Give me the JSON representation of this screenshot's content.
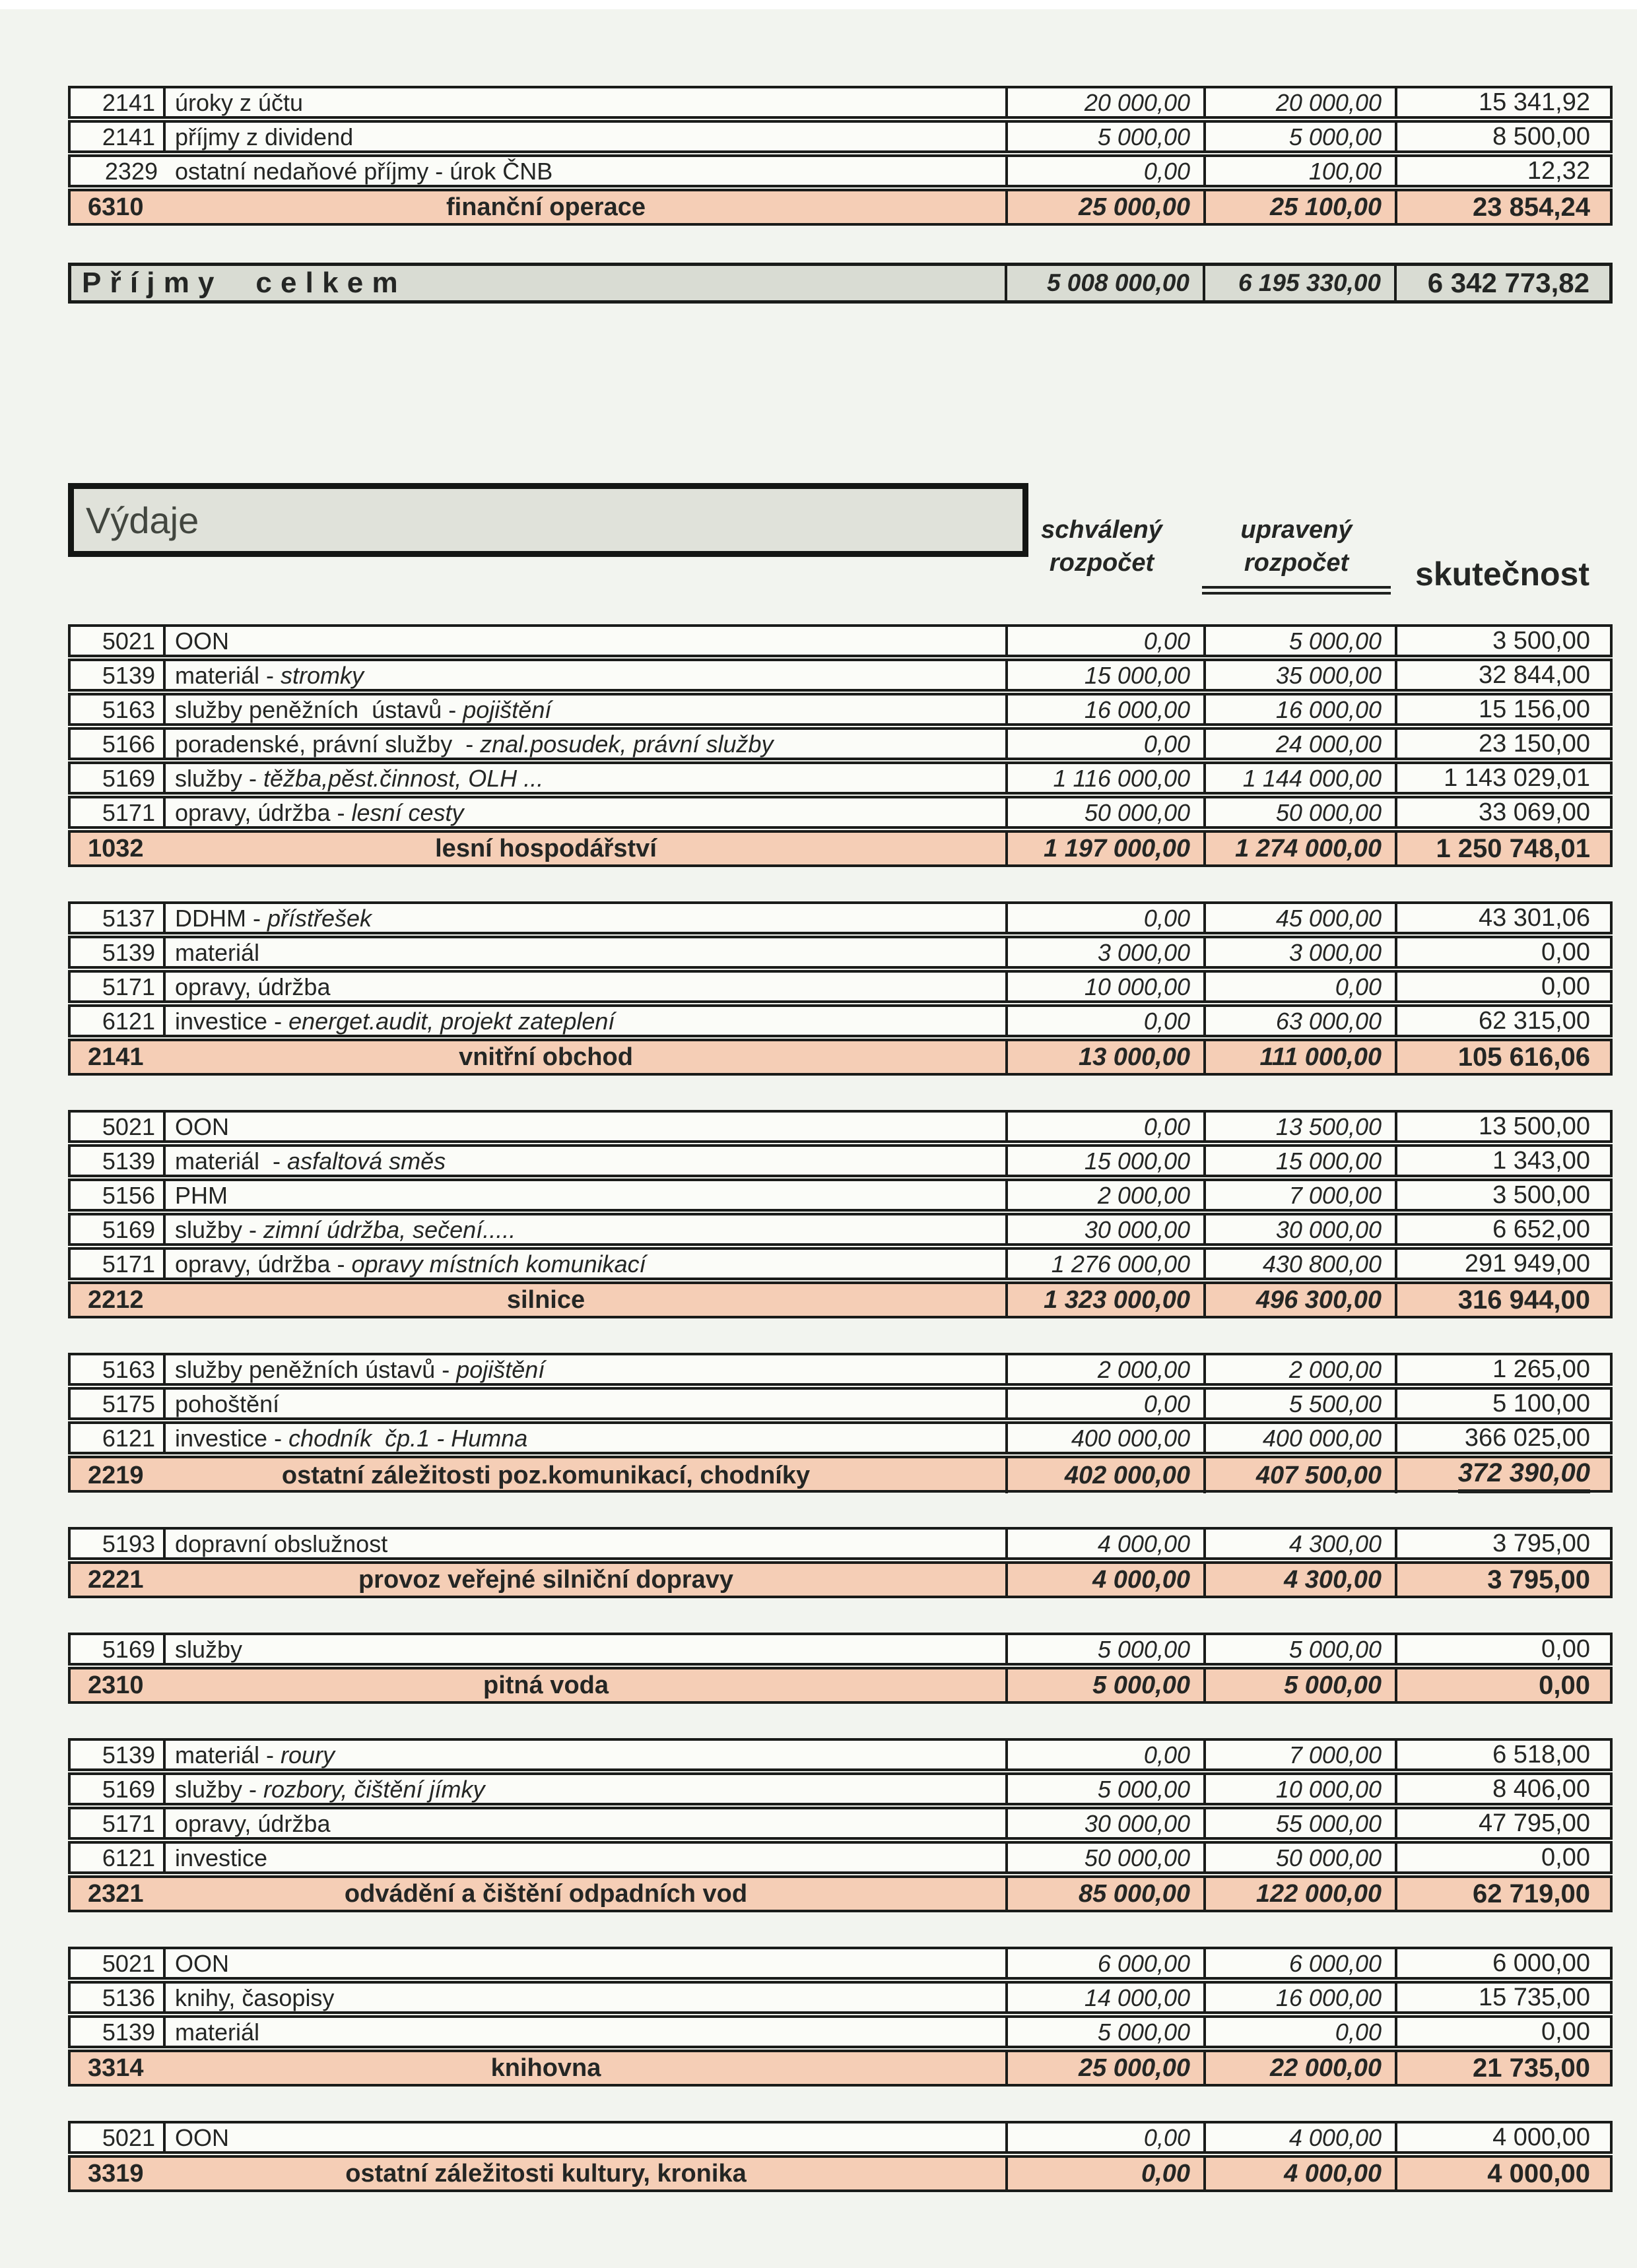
{
  "headers": {
    "approved_line1": "schválený",
    "approved_line2": "rozpočet",
    "adjusted_line1": "upravený",
    "adjusted_line2": "rozpočet",
    "actual": "skutečnost"
  },
  "incomes": {
    "rows": [
      {
        "code": "2141",
        "desc": "úroky z účtu",
        "desc_italic": "",
        "sch": "20 000,00",
        "upr": "20 000,00",
        "skut": "15 341,92",
        "divider": true
      },
      {
        "code": "2141",
        "desc": "příjmy z dividend",
        "desc_italic": "",
        "sch": "5 000,00",
        "upr": "5 000,00",
        "skut": "8 500,00",
        "divider": true
      },
      {
        "code": "2329",
        "desc": "ostatní nedaňové příjmy - úrok ČNB",
        "desc_italic": "",
        "sch": "0,00",
        "upr": "100,00",
        "skut": "12,32",
        "divider": false
      }
    ],
    "summary": {
      "code": "6310",
      "label": "finanční operace",
      "sch": "25 000,00",
      "upr": "25 100,00",
      "skut": "23 854,24",
      "underline": false
    },
    "total": {
      "label": "Příjmy celkem",
      "sch": "5 008 000,00",
      "upr": "6 195 330,00",
      "skut": "6 342 773,82"
    }
  },
  "expenses": {
    "title": "Výdaje",
    "sections": [
      {
        "rows": [
          {
            "code": "5021",
            "desc": "OON",
            "desc_italic": "",
            "sch": "0,00",
            "upr": "5 000,00",
            "skut": "3 500,00",
            "divider": true
          },
          {
            "code": "5139",
            "desc": "materiál - ",
            "desc_italic": "stromky",
            "sch": "15 000,00",
            "upr": "35 000,00",
            "skut": "32 844,00",
            "divider": true
          },
          {
            "code": "5163",
            "desc": "služby peněžních  ústavů - ",
            "desc_italic": "pojištění",
            "sch": "16 000,00",
            "upr": "16 000,00",
            "skut": "15 156,00",
            "divider": true
          },
          {
            "code": "5166",
            "desc": "poradenské, právní služby  - ",
            "desc_italic": "znal.posudek, právní služby",
            "sch": "0,00",
            "upr": "24 000,00",
            "skut": "23 150,00",
            "divider": true
          },
          {
            "code": "5169",
            "desc": "služby - ",
            "desc_italic": "těžba,pěst.činnost, OLH ...",
            "sch": "1 116 000,00",
            "upr": "1 144 000,00",
            "skut": "1 143 029,01",
            "divider": true
          },
          {
            "code": "5171",
            "desc": "opravy, údržba - ",
            "desc_italic": "lesní cesty",
            "sch": "50 000,00",
            "upr": "50 000,00",
            "skut": "33 069,00",
            "divider": true
          }
        ],
        "summary": {
          "code": "1032",
          "label": "lesní hospodářství",
          "sch": "1 197 000,00",
          "upr": "1 274 000,00",
          "skut": "1 250 748,01",
          "underline": false
        }
      },
      {
        "rows": [
          {
            "code": "5137",
            "desc": "DDHM - ",
            "desc_italic": "přístřešek",
            "sch": "0,00",
            "upr": "45 000,00",
            "skut": "43 301,06",
            "divider": true
          },
          {
            "code": "5139",
            "desc": "materiál",
            "desc_italic": "",
            "sch": "3 000,00",
            "upr": "3 000,00",
            "skut": "0,00",
            "divider": true
          },
          {
            "code": "5171",
            "desc": "opravy, údržba",
            "desc_italic": "",
            "sch": "10 000,00",
            "upr": "0,00",
            "skut": "0,00",
            "divider": true
          },
          {
            "code": "6121",
            "desc": "investice - ",
            "desc_italic": "energet.audit, projekt zateplení",
            "sch": "0,00",
            "upr": "63 000,00",
            "skut": "62 315,00",
            "divider": true
          }
        ],
        "summary": {
          "code": "2141",
          "label": "vnitřní obchod",
          "sch": "13 000,00",
          "upr": "111 000,00",
          "skut": "105 616,06",
          "underline": false
        }
      },
      {
        "rows": [
          {
            "code": "5021",
            "desc": "OON",
            "desc_italic": "",
            "sch": "0,00",
            "upr": "13 500,00",
            "skut": "13 500,00",
            "divider": true
          },
          {
            "code": "5139",
            "desc": "materiál  - ",
            "desc_italic": "asfaltová směs",
            "sch": "15 000,00",
            "upr": "15 000,00",
            "skut": "1 343,00",
            "divider": true
          },
          {
            "code": "5156",
            "desc": "PHM",
            "desc_italic": "",
            "sch": "2 000,00",
            "upr": "7 000,00",
            "skut": "3 500,00",
            "divider": true
          },
          {
            "code": "5169",
            "desc": "služby - ",
            "desc_italic": "zimní údržba, sečení.....",
            "sch": "30 000,00",
            "upr": "30 000,00",
            "skut": "6 652,00",
            "divider": true
          },
          {
            "code": "5171",
            "desc": "opravy, údržba - ",
            "desc_italic": "opravy místních komunikací",
            "sch": "1 276 000,00",
            "upr": "430 800,00",
            "skut": "291 949,00",
            "divider": true
          }
        ],
        "summary": {
          "code": "2212",
          "label": "silnice",
          "sch": "1 323 000,00",
          "upr": "496 300,00",
          "skut": "316 944,00",
          "underline": false
        }
      },
      {
        "rows": [
          {
            "code": "5163",
            "desc": "služby peněžních ústavů - ",
            "desc_italic": "pojištění",
            "sch": "2 000,00",
            "upr": "2 000,00",
            "skut": "1 265,00",
            "divider": true
          },
          {
            "code": "5175",
            "desc": "pohoštění",
            "desc_italic": "",
            "sch": "0,00",
            "upr": "5 500,00",
            "skut": "5 100,00",
            "divider": true
          },
          {
            "code": "6121",
            "desc": "investice - ",
            "desc_italic": "chodník  čp.1 - Humna",
            "sch": "400 000,00",
            "upr": "400 000,00",
            "skut": "366 025,00",
            "divider": true
          }
        ],
        "summary": {
          "code": "2219",
          "label": "ostatní záležitosti poz.komunikací, chodníky",
          "sch": "402 000,00",
          "upr": "407 500,00",
          "skut": "372 390,00",
          "underline": true
        }
      },
      {
        "rows": [
          {
            "code": "5193",
            "desc": "dopravní obslužnost",
            "desc_italic": "",
            "sch": "4 000,00",
            "upr": "4 300,00",
            "skut": "3 795,00",
            "divider": true
          }
        ],
        "summary": {
          "code": "2221",
          "label": "provoz veřejné silniční dopravy",
          "sch": "4 000,00",
          "upr": "4 300,00",
          "skut": "3 795,00",
          "underline": false
        }
      },
      {
        "rows": [
          {
            "code": "5169",
            "desc": "služby",
            "desc_italic": "",
            "sch": "5 000,00",
            "upr": "5 000,00",
            "skut": "0,00",
            "divider": true
          }
        ],
        "summary": {
          "code": "2310",
          "label": "pitná voda",
          "sch": "5 000,00",
          "upr": "5 000,00",
          "skut": "0,00",
          "underline": false
        }
      },
      {
        "rows": [
          {
            "code": "5139",
            "desc": "materiál - ",
            "desc_italic": "roury",
            "sch": "0,00",
            "upr": "7 000,00",
            "skut": "6 518,00",
            "divider": true
          },
          {
            "code": "5169",
            "desc": "služby - ",
            "desc_italic": "rozbory, čištění jímky",
            "sch": "5 000,00",
            "upr": "10 000,00",
            "skut": "8 406,00",
            "divider": true
          },
          {
            "code": "5171",
            "desc": "opravy, údržba",
            "desc_italic": "",
            "sch": "30 000,00",
            "upr": "55 000,00",
            "skut": "47 795,00",
            "divider": true
          },
          {
            "code": "6121",
            "desc": "investice",
            "desc_italic": "",
            "sch": "50 000,00",
            "upr": "50 000,00",
            "skut": "0,00",
            "divider": true
          }
        ],
        "summary": {
          "code": "2321",
          "label": "odvádění a čištění odpadních vod",
          "sch": "85 000,00",
          "upr": "122 000,00",
          "skut": "62 719,00",
          "underline": false
        }
      },
      {
        "rows": [
          {
            "code": "5021",
            "desc": "OON",
            "desc_italic": "",
            "sch": "6 000,00",
            "upr": "6 000,00",
            "skut": "6 000,00",
            "divider": true
          },
          {
            "code": "5136",
            "desc": "knihy, časopisy",
            "desc_italic": "",
            "sch": "14 000,00",
            "upr": "16 000,00",
            "skut": "15 735,00",
            "divider": true
          },
          {
            "code": "5139",
            "desc": "materiál",
            "desc_italic": "",
            "sch": "5 000,00",
            "upr": "0,00",
            "skut": "0,00",
            "divider": true
          }
        ],
        "summary": {
          "code": "3314",
          "label": "knihovna",
          "sch": "25 000,00",
          "upr": "22 000,00",
          "skut": "21 735,00",
          "underline": false
        }
      },
      {
        "rows": [
          {
            "code": "5021",
            "desc": "OON",
            "desc_italic": "",
            "sch": "0,00",
            "upr": "4 000,00",
            "skut": "4 000,00",
            "divider": true
          }
        ],
        "summary": {
          "code": "3319",
          "label": "ostatní záležitosti kultury, kronika",
          "sch": "0,00",
          "upr": "4 000,00",
          "skut": "4 000,00",
          "underline": false
        }
      }
    ]
  }
}
